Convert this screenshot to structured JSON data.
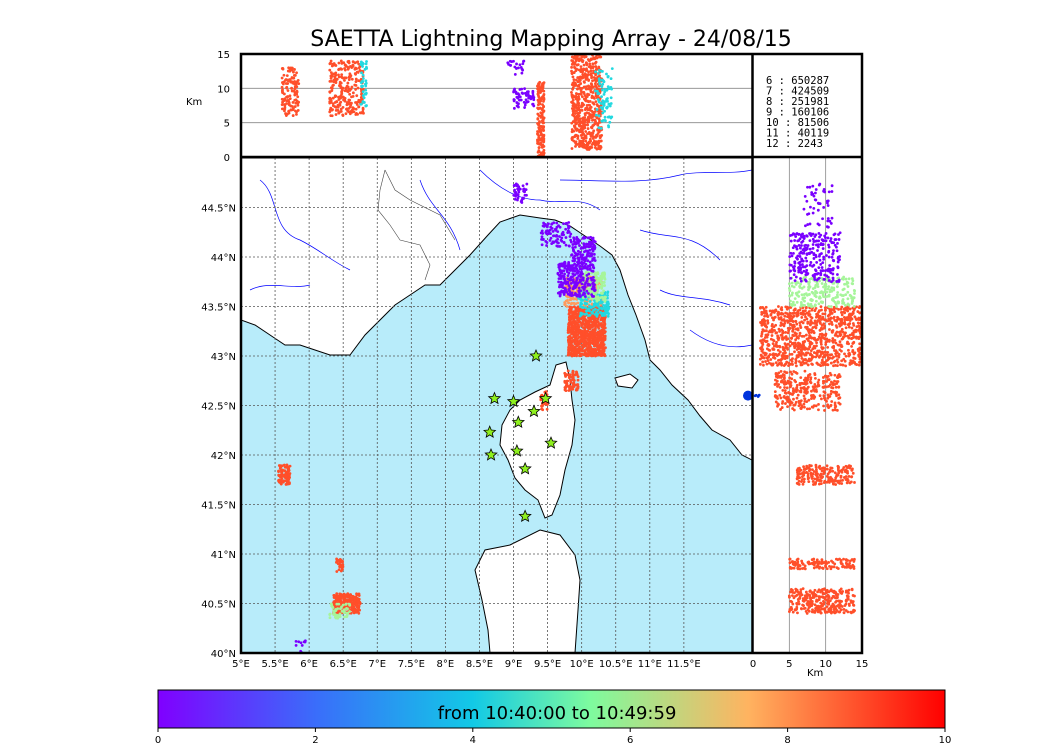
{
  "chart_data": {
    "type": "scatter",
    "title": "SAETTA Lightning Mapping Array - 24/08/15",
    "map": {
      "lon_range": [
        5,
        12.5
      ],
      "lat_range": [
        40,
        45
      ],
      "lon_ticks": [
        "5°E",
        "5.5°E",
        "6°E",
        "6.5°E",
        "7°E",
        "7.5°E",
        "8°E",
        "8.5°E",
        "9°E",
        "9.5°E",
        "10°E",
        "10.5°E",
        "11°E",
        "11.5°E"
      ],
      "lat_ticks": [
        "40°N",
        "40.5°N",
        "41°N",
        "41.5°N",
        "42°N",
        "42.5°N",
        "43°N",
        "43.5°N",
        "44°N",
        "44.5°N"
      ],
      "grid": "dashed",
      "sea_color": "#b8ecfa",
      "land_color": "#ffffff",
      "river_color": "#0000ff",
      "stations_color": "#8ef01e",
      "stations": [
        {
          "lon": 9.33,
          "lat": 43.0
        },
        {
          "lon": 8.72,
          "lat": 42.57
        },
        {
          "lon": 9.0,
          "lat": 42.54
        },
        {
          "lon": 9.3,
          "lat": 42.44
        },
        {
          "lon": 9.47,
          "lat": 42.57
        },
        {
          "lon": 9.07,
          "lat": 42.33
        },
        {
          "lon": 8.65,
          "lat": 42.23
        },
        {
          "lon": 9.55,
          "lat": 42.12
        },
        {
          "lon": 9.05,
          "lat": 42.04
        },
        {
          "lon": 8.67,
          "lat": 42.0
        },
        {
          "lon": 9.17,
          "lat": 41.86
        },
        {
          "lon": 9.17,
          "lat": 41.38
        }
      ],
      "clusters": [
        {
          "lon": [
            9.8,
            10.35
          ],
          "lat": [
            43.0,
            43.5
          ],
          "color": "#ff4f2a",
          "n": 900
        },
        {
          "lon": [
            9.75,
            10.3
          ],
          "lat": [
            43.5,
            43.8
          ],
          "color": "#ff9b5e",
          "n": 200
        },
        {
          "lon": [
            9.95,
            10.4
          ],
          "lat": [
            43.4,
            43.65
          ],
          "color": "#23d9e0",
          "n": 160
        },
        {
          "lon": [
            10.0,
            10.35
          ],
          "lat": [
            43.55,
            43.85
          ],
          "color": "#a6f59a",
          "n": 140
        },
        {
          "lon": [
            9.65,
            10.2
          ],
          "lat": [
            43.6,
            43.95
          ],
          "color": "#7a00ff",
          "n": 260
        },
        {
          "lon": [
            9.85,
            10.2
          ],
          "lat": [
            43.95,
            44.2
          ],
          "color": "#7a00ff",
          "n": 120
        },
        {
          "lon": [
            9.4,
            9.85
          ],
          "lat": [
            44.1,
            44.35
          ],
          "color": "#7a00ff",
          "n": 90
        },
        {
          "lon": [
            9.0,
            9.2
          ],
          "lat": [
            44.55,
            44.75
          ],
          "color": "#7a00ff",
          "n": 40
        },
        {
          "lon": [
            9.75,
            9.95
          ],
          "lat": [
            42.65,
            42.85
          ],
          "color": "#ff4f2a",
          "n": 80
        },
        {
          "lon": [
            9.4,
            9.5
          ],
          "lat": [
            42.45,
            42.65
          ],
          "color": "#ff4f2a",
          "n": 30
        },
        {
          "lon": [
            5.55,
            5.72
          ],
          "lat": [
            41.7,
            41.9
          ],
          "color": "#ff4f2a",
          "n": 90
        },
        {
          "lon": [
            6.35,
            6.75
          ],
          "lat": [
            40.4,
            40.6
          ],
          "color": "#ff4f2a",
          "n": 260
        },
        {
          "lon": [
            6.3,
            6.6
          ],
          "lat": [
            40.35,
            40.5
          ],
          "color": "#a6f59a",
          "n": 50
        },
        {
          "lon": [
            6.4,
            6.5
          ],
          "lat": [
            40.82,
            40.95
          ],
          "color": "#ff4f2a",
          "n": 30
        },
        {
          "lon": [
            5.8,
            5.95
          ],
          "lat": [
            40.0,
            40.15
          ],
          "color": "#7a00ff",
          "n": 10
        }
      ]
    },
    "lon_alt": {
      "xlim": [
        5,
        12.5
      ],
      "alt_ticks": [
        0,
        5,
        10,
        15
      ],
      "ylabel": "Km",
      "clusters": [
        {
          "x": [
            5.6,
            5.85
          ],
          "alt": [
            6,
            13
          ],
          "color": "#ff4f2a",
          "n": 120
        },
        {
          "x": [
            6.3,
            6.8
          ],
          "alt": [
            6,
            14
          ],
          "color": "#ff4f2a",
          "n": 260
        },
        {
          "x": [
            6.75,
            6.85
          ],
          "alt": [
            7,
            14
          ],
          "color": "#23d9e0",
          "n": 40
        },
        {
          "x": [
            9.35,
            9.45
          ],
          "alt": [
            0,
            11
          ],
          "color": "#ff4f2a",
          "n": 160
        },
        {
          "x": [
            9.85,
            10.3
          ],
          "alt": [
            1,
            15
          ],
          "color": "#ff4f2a",
          "n": 600
        },
        {
          "x": [
            10.2,
            10.45
          ],
          "alt": [
            4,
            13
          ],
          "color": "#23d9e0",
          "n": 80
        },
        {
          "x": [
            9.0,
            9.3
          ],
          "alt": [
            7,
            10
          ],
          "color": "#7a00ff",
          "n": 60
        },
        {
          "x": [
            8.9,
            9.2
          ],
          "alt": [
            12,
            14
          ],
          "color": "#7a00ff",
          "n": 20
        }
      ]
    },
    "alt_lat": {
      "ylim": [
        40,
        45
      ],
      "alt_ticks": [
        0,
        5,
        10,
        15
      ],
      "xlabel": "Km",
      "clusters": [
        {
          "alt": [
            1,
            15
          ],
          "lat": [
            42.9,
            43.5
          ],
          "color": "#ff4f2a",
          "n": 900
        },
        {
          "alt": [
            3,
            12
          ],
          "lat": [
            42.45,
            42.85
          ],
          "color": "#ff4f2a",
          "n": 300
        },
        {
          "alt": [
            5,
            14
          ],
          "lat": [
            43.5,
            43.8
          ],
          "color": "#a6f59a",
          "n": 220
        },
        {
          "alt": [
            5,
            12
          ],
          "lat": [
            43.75,
            44.25
          ],
          "color": "#7a00ff",
          "n": 250
        },
        {
          "alt": [
            7,
            11
          ],
          "lat": [
            44.3,
            44.75
          ],
          "color": "#7a00ff",
          "n": 50
        },
        {
          "alt": [
            6,
            14
          ],
          "lat": [
            41.7,
            41.9
          ],
          "color": "#ff4f2a",
          "n": 200
        },
        {
          "alt": [
            5,
            14
          ],
          "lat": [
            40.4,
            40.65
          ],
          "color": "#ff4f2a",
          "n": 300
        },
        {
          "alt": [
            5,
            14
          ],
          "lat": [
            40.85,
            40.95
          ],
          "color": "#ff4f2a",
          "n": 120
        },
        {
          "alt": [
            0,
            1
          ],
          "lat": [
            42.58,
            42.62
          ],
          "color": "#0033dd",
          "n": 4
        }
      ]
    },
    "legend": [
      {
        "label": " 6 :   650287",
        "color": "#000000"
      },
      {
        "label": " 7 :   424509",
        "color": "#ff0000"
      },
      {
        "label": " 8 :   251981",
        "color": "#000000"
      },
      {
        "label": " 9 :   160106",
        "color": "#000000"
      },
      {
        "label": "10 :    81506",
        "color": "#000000"
      },
      {
        "label": "11 :    40119",
        "color": "#000000"
      },
      {
        "label": "12 :     2243",
        "color": "#000000"
      }
    ],
    "colorbar": {
      "label": "from 10:40:00 to 10:49:59",
      "range": [
        0,
        10
      ],
      "ticks": [
        "0",
        "2",
        "4",
        "6",
        "8",
        "10"
      ],
      "colormap": "rainbow"
    }
  }
}
